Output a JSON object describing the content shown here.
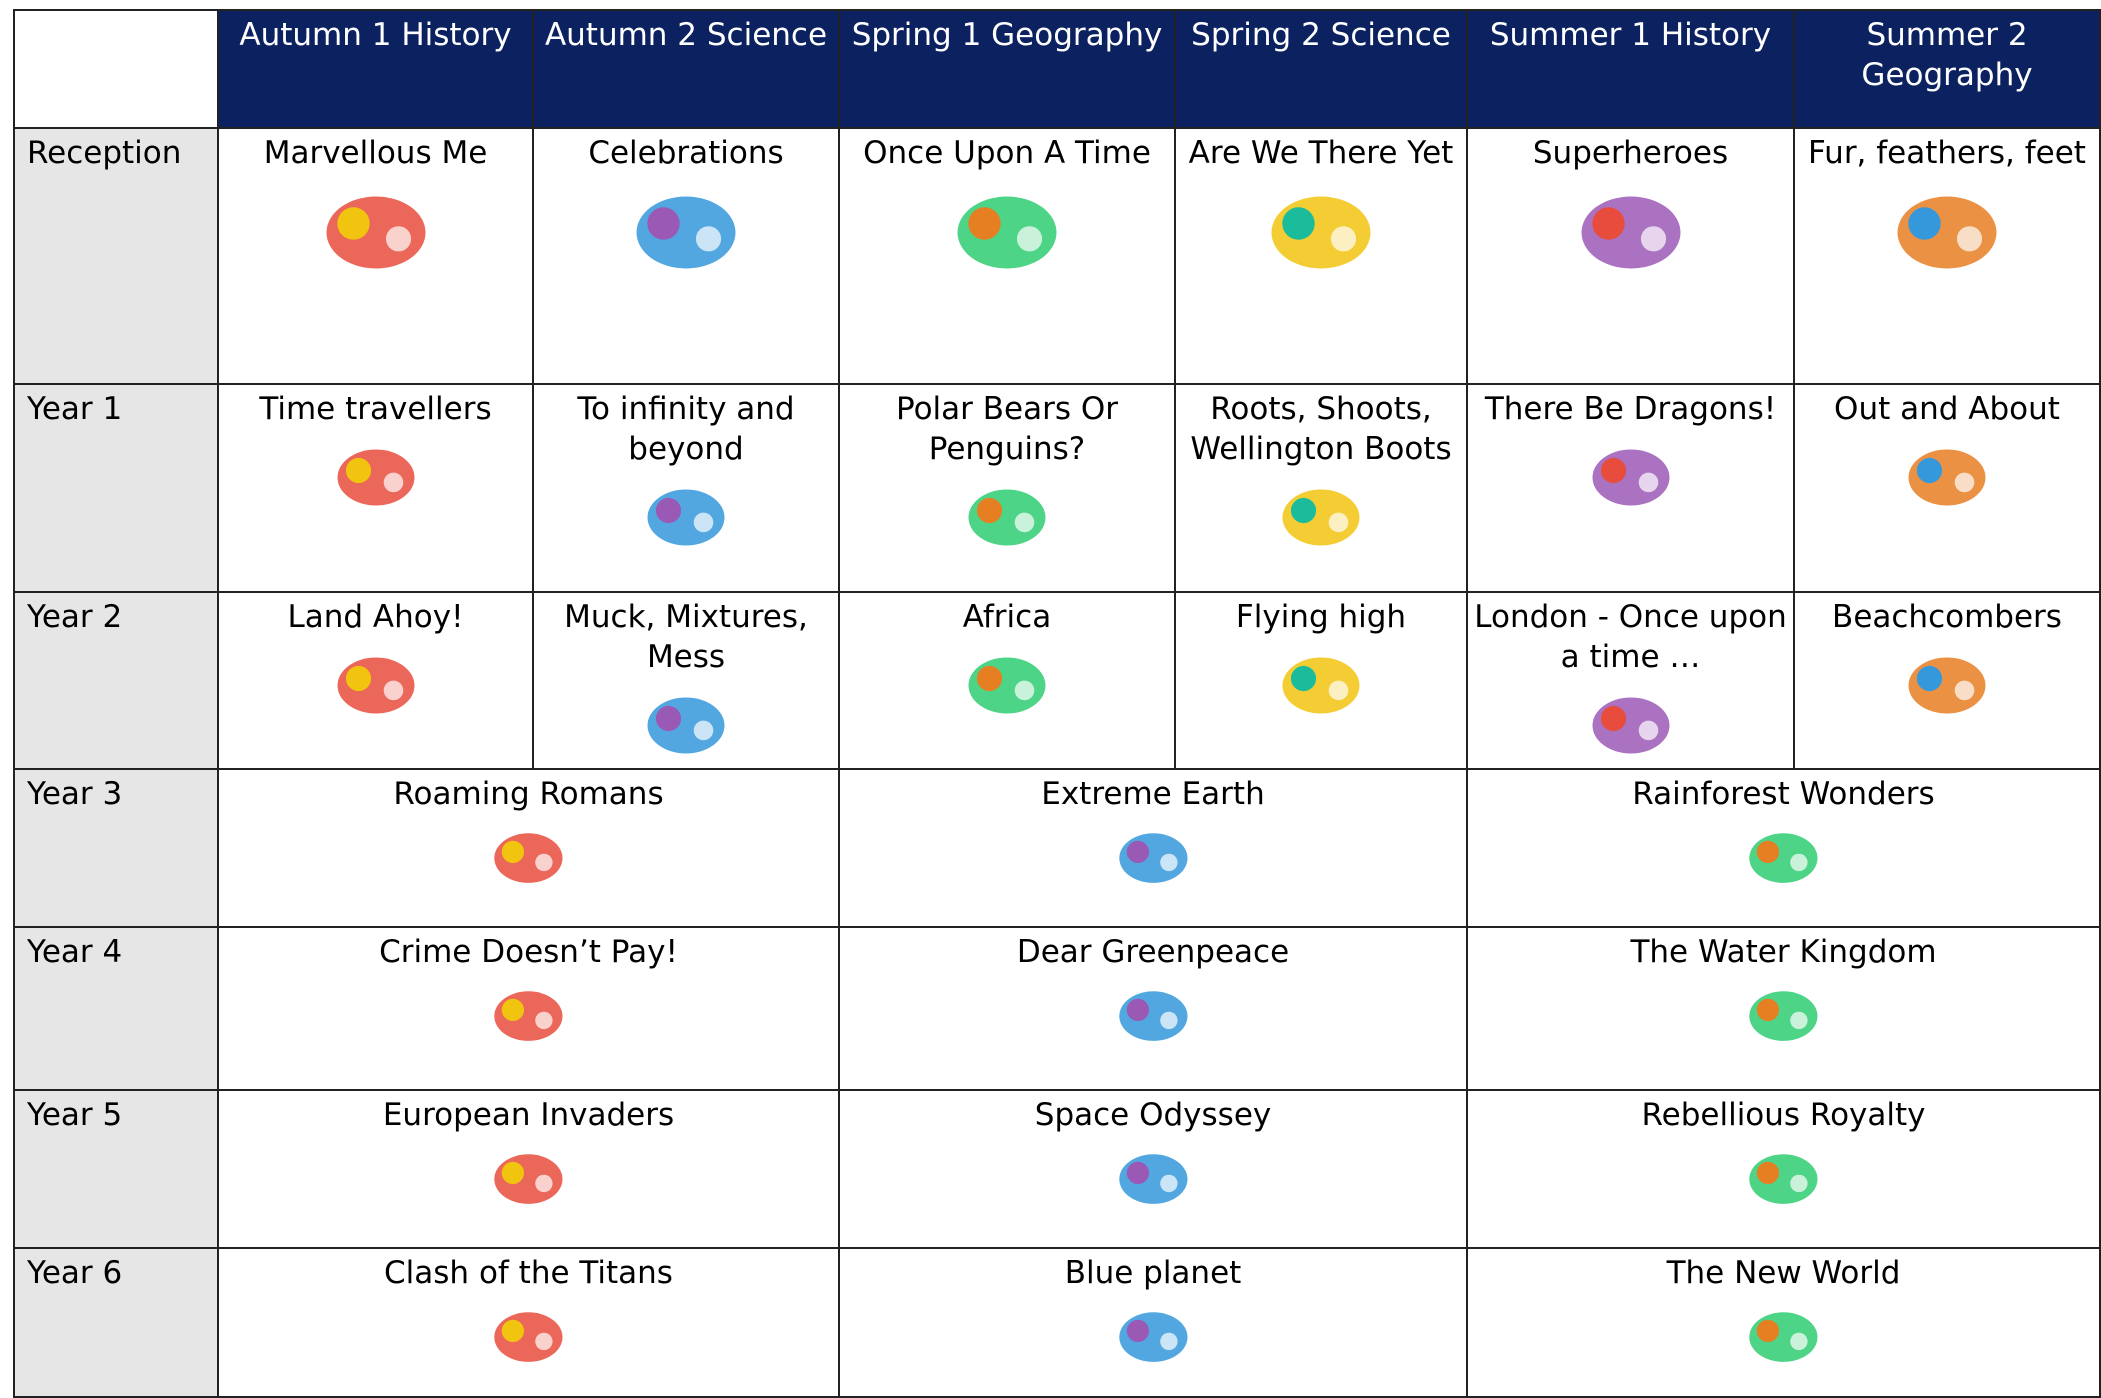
{
  "table": {
    "columns": [
      "Autumn 1 History",
      "Autumn 2 Science",
      "Spring 1 Geography",
      "Spring 2 Science",
      "Summer 1 History",
      "Summer 2 Geography"
    ],
    "rows": [
      {
        "label": "Reception",
        "topics": [
          "Marvellous Me",
          "Celebrations",
          "Once Upon A Time",
          "Are We There Yet",
          "Superheroes",
          "Fur, feathers, feet"
        ]
      },
      {
        "label": "Year 1",
        "topics": [
          "Time travellers",
          "To infinity and beyond",
          "Polar Bears Or Penguins?",
          "Roots, Shoots, Wellington Boots",
          "There Be Dragons!",
          "Out and About"
        ]
      },
      {
        "label": "Year 2",
        "topics": [
          "Land Ahoy!",
          "Muck, Mixtures, Mess",
          "Africa",
          "Flying high",
          "London - Once upon a time …",
          "Beachcombers"
        ]
      },
      {
        "label": "Year 3",
        "topics": [
          "Roaming Romans",
          "Extreme Earth",
          "Rainforest Wonders"
        ]
      },
      {
        "label": "Year 4",
        "topics": [
          "Crime Doesn’t Pay!",
          "Dear Greenpeace",
          "The Water Kingdom"
        ]
      },
      {
        "label": "Year 5",
        "topics": [
          "European Invaders",
          "Space Odyssey",
          "Rebellious Royalty"
        ]
      },
      {
        "label": "Year 6",
        "topics": [
          "Clash of the Titans",
          "Blue planet",
          "The New World"
        ]
      }
    ]
  }
}
